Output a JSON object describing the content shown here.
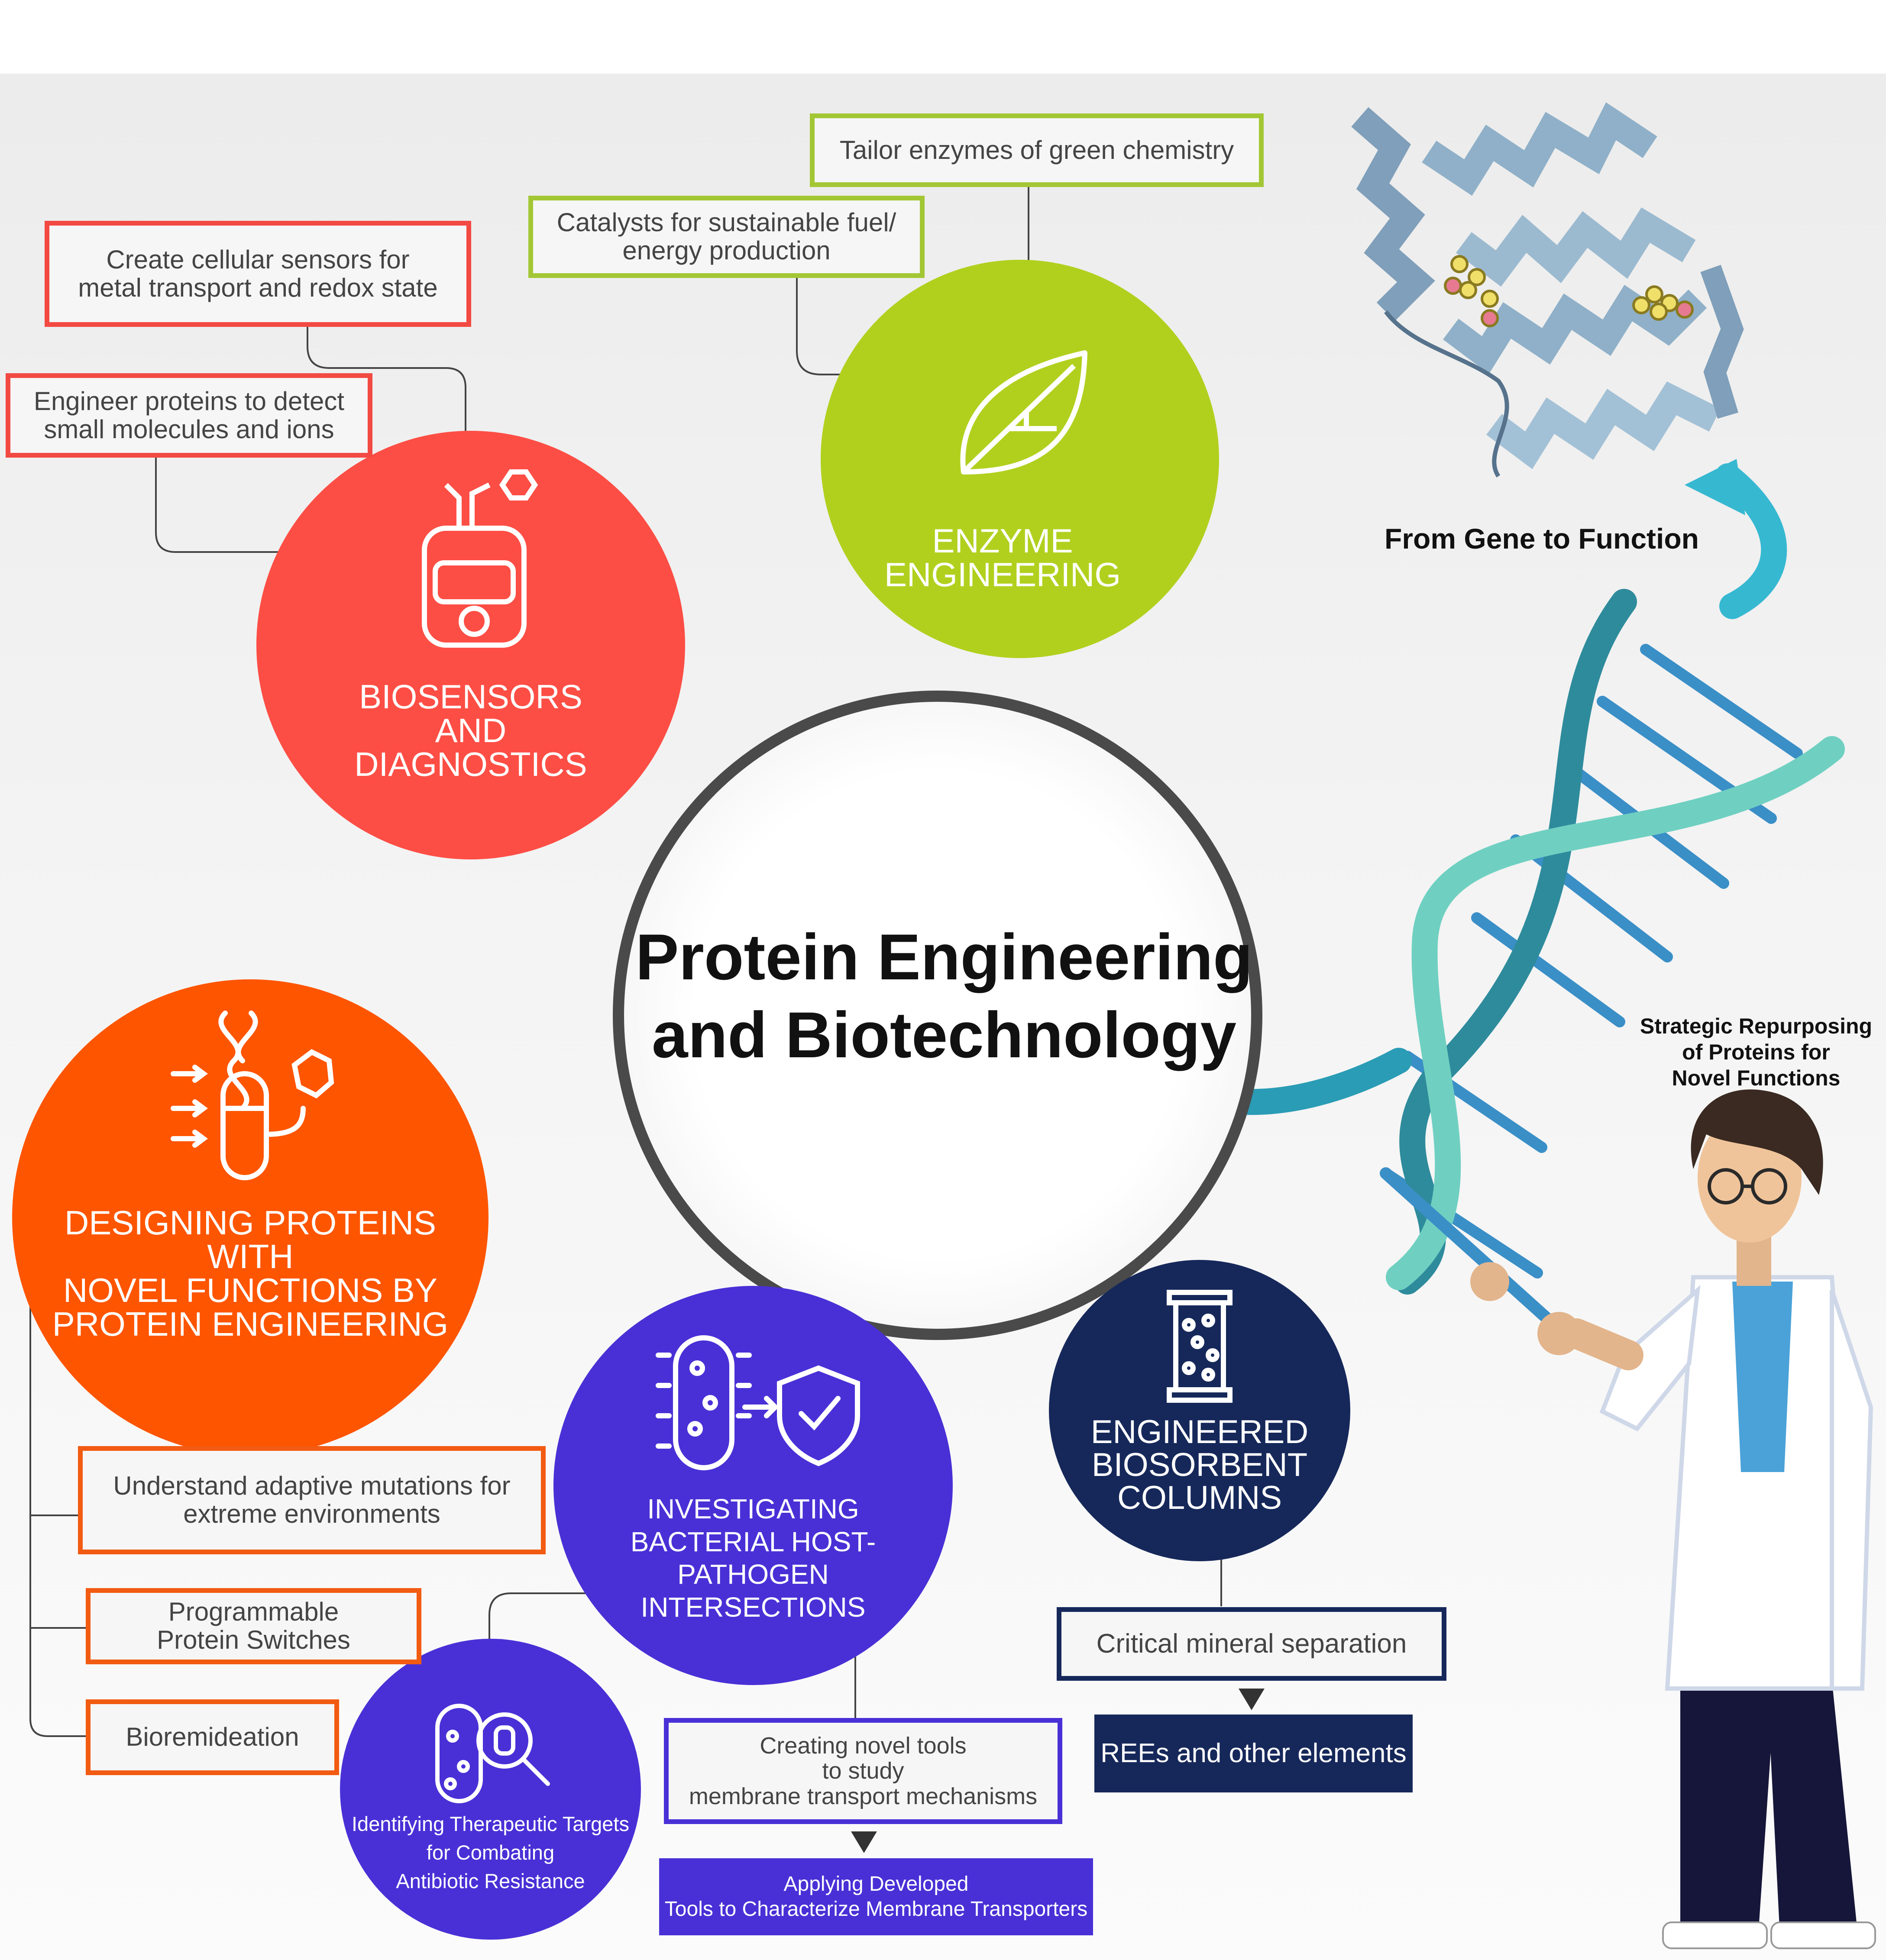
{
  "center": {
    "title": "Protein Engineering\nand Biotechnology"
  },
  "circles": {
    "biosensors": {
      "title": "BIOSENSORS\nAND\nDIAGNOSTICS",
      "color": "#fd4e45"
    },
    "enzyme": {
      "title": "ENZYME\nENGINEERING",
      "color": "#b1d01e"
    },
    "designing": {
      "title": "DESIGNING PROTEINS WITH\nNOVEL FUNCTIONS BY\nPROTEIN ENGINEERING",
      "color": "#fe5501"
    },
    "investigating": {
      "title": "INVESTIGATING\nBACTERIAL HOST-PATHOGEN\nINTERSECTIONS",
      "color": "#4930d6"
    },
    "identifying": {
      "title": "Identifying Therapeutic Targets\nfor Combating\nAntibiotic Resistance",
      "color": "#4930d6"
    },
    "biosorbent": {
      "title": "ENGINEERED\nBIOSORBENT\nCOLUMNS",
      "color": "#16285a"
    }
  },
  "boxes": {
    "cellular_sensors": "Create cellular sensors for\nmetal transport and redox state",
    "detect_molecules": "Engineer proteins to detect\nsmall molecules and ions",
    "tailor_enzymes": "Tailor enzymes of green chemistry",
    "catalysts": "Catalysts for sustainable fuel/\nenergy production",
    "adaptive_mutations": "Understand adaptive mutations for\nextreme environments",
    "protein_switches": "Programmable\nProtein Switches",
    "bioremediation": "Bioremideation",
    "novel_tools": "Creating novel tools\nto study\nmembrane transport mechanisms",
    "applying_tools": "Applying Developed\nTools to Characterize Membrane Transporters",
    "mineral_separation": "Critical mineral separation",
    "rees": "REEs and other elements"
  },
  "labels": {
    "gene_to_function": "From Gene to Function",
    "strategic_repurposing": "Strategic Repurposing\nof Proteins for\nNovel Functions"
  },
  "icons": [
    "biosensor-device-icon",
    "leaf-icon",
    "dna-tube-icon",
    "bacteria-shield-icon",
    "bacteria-magnifier-icon",
    "column-icon",
    "dna-helix-icon",
    "protein-structure-icon",
    "curved-arrow-icon",
    "down-arrow-icon"
  ]
}
